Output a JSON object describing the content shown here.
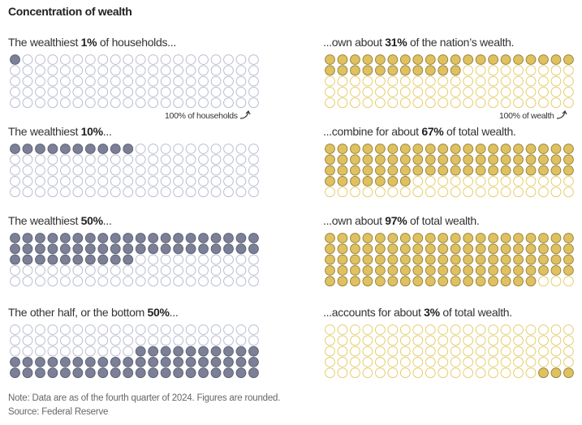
{
  "title": "Concentration of wealth",
  "colors": {
    "household_fill": "#7b8097",
    "household_stroke": "#5d6175",
    "household_empty": "#b9bdd1",
    "wealth_fill": "#dfc160",
    "wealth_stroke": "#9a853f",
    "wealth_empty": "#e6cd6c"
  },
  "chart_data": {
    "type": "waffle",
    "grid": {
      "columns": 20,
      "rows": 5,
      "total": 100
    },
    "panels": [
      {
        "pre": "The wealthiest ",
        "bold": "1%",
        "post": " of households...",
        "kind": "household",
        "value": 1,
        "fill_from": "start",
        "annotation": "100% of households"
      },
      {
        "pre": "...own about ",
        "bold": "31%",
        "post": " of the nation’s wealth.",
        "kind": "wealth",
        "value": 31,
        "fill_from": "start",
        "annotation": "100% of wealth"
      },
      {
        "pre": "The wealthiest ",
        "bold": "10%",
        "post": "...",
        "kind": "household",
        "value": 10,
        "fill_from": "start"
      },
      {
        "pre": "...combine for about ",
        "bold": "67%",
        "post": " of total wealth.",
        "kind": "wealth",
        "value": 67,
        "fill_from": "start"
      },
      {
        "pre": "The wealthiest ",
        "bold": "50%",
        "post": "...",
        "kind": "household",
        "value": 50,
        "fill_from": "start"
      },
      {
        "pre": "...own about ",
        "bold": "97%",
        "post": " of total wealth.",
        "kind": "wealth",
        "value": 97,
        "fill_from": "start"
      },
      {
        "pre": "The other half, or the bottom ",
        "bold": "50%",
        "post": "...",
        "kind": "household",
        "value": 50,
        "fill_from": "end"
      },
      {
        "pre": "...accounts for about ",
        "bold": "3%",
        "post": " of total wealth.",
        "kind": "wealth",
        "value": 3,
        "fill_from": "end"
      }
    ]
  },
  "footer": {
    "note": "Note: Data are as of the fourth quarter of 2024. Figures are rounded.",
    "source": "Source: Federal Reserve"
  }
}
